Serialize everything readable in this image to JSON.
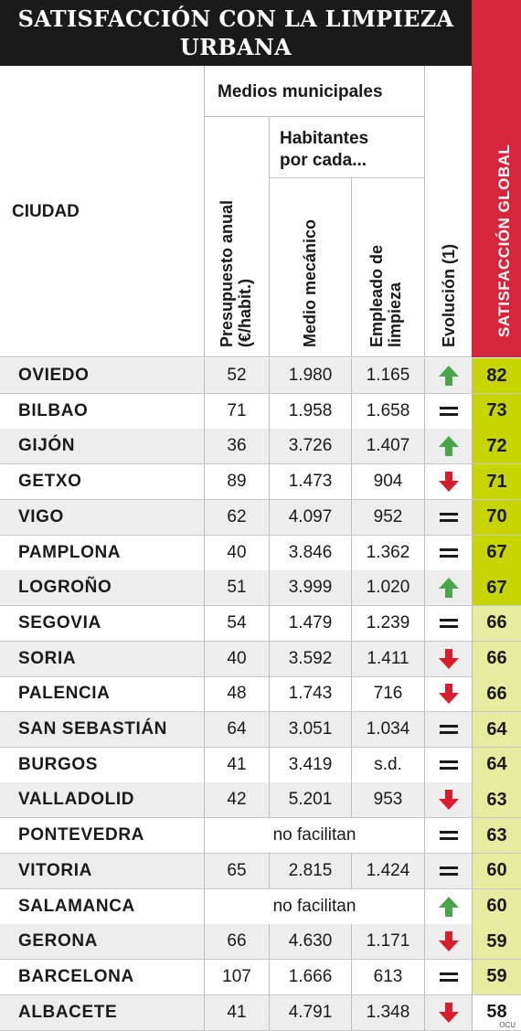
{
  "title": {
    "line1": "SATISFACCIÓN CON LA LIMPIEZA",
    "line2": "URBANA"
  },
  "headers": {
    "ciudad": "CIUDAD",
    "medios": "Medios municipales",
    "habitantes_line1": "Habitantes",
    "habitantes_line2": "por cada...",
    "presupuesto_line1": "Presupuesto anual",
    "presupuesto_line2": "(€/habit.)",
    "medio_mecanico": "Medio mecánico",
    "empleado_line1": "Empleado de",
    "empleado_line2": "limpieza",
    "evolucion": "Evolución (1)",
    "satisfaccion": "SATISFACCIÓN GLOBAL"
  },
  "colors": {
    "header_bg": "#1a1a1a",
    "satisfaccion_header": "#d6263d",
    "arrow_up": "#4aa54a",
    "arrow_down": "#d81e2c",
    "equal": "#1a1a1a",
    "score_high": "#c8d400",
    "score_mid": "#e7eb9e",
    "score_low": "#ffffff"
  },
  "rows": [
    {
      "ciudad": "OVIEDO",
      "presupuesto": "52",
      "mecanico": "1.980",
      "empleado": "1.165",
      "evolucion": "up",
      "satisfaccion": "82",
      "tier": "high"
    },
    {
      "ciudad": "BILBAO",
      "presupuesto": "71",
      "mecanico": "1.958",
      "empleado": "1.658",
      "evolucion": "equal",
      "satisfaccion": "73",
      "tier": "high"
    },
    {
      "ciudad": "GIJÓN",
      "presupuesto": "36",
      "mecanico": "3.726",
      "empleado": "1.407",
      "evolucion": "up",
      "satisfaccion": "72",
      "tier": "high"
    },
    {
      "ciudad": "GETXO",
      "presupuesto": "89",
      "mecanico": "1.473",
      "empleado": "904",
      "evolucion": "down",
      "satisfaccion": "71",
      "tier": "high"
    },
    {
      "ciudad": "VIGO",
      "presupuesto": "62",
      "mecanico": "4.097",
      "empleado": "952",
      "evolucion": "equal",
      "satisfaccion": "70",
      "tier": "high"
    },
    {
      "ciudad": "PAMPLONA",
      "presupuesto": "40",
      "mecanico": "3.846",
      "empleado": "1.362",
      "evolucion": "equal",
      "satisfaccion": "67",
      "tier": "high"
    },
    {
      "ciudad": "LOGROÑO",
      "presupuesto": "51",
      "mecanico": "3.999",
      "empleado": "1.020",
      "evolucion": "up",
      "satisfaccion": "67",
      "tier": "high"
    },
    {
      "ciudad": "SEGOVIA",
      "presupuesto": "54",
      "mecanico": "1.479",
      "empleado": "1.239",
      "evolucion": "equal",
      "satisfaccion": "66",
      "tier": "mid"
    },
    {
      "ciudad": "SORIA",
      "presupuesto": "40",
      "mecanico": "3.592",
      "empleado": "1.411",
      "evolucion": "down",
      "satisfaccion": "66",
      "tier": "mid"
    },
    {
      "ciudad": "PALENCIA",
      "presupuesto": "48",
      "mecanico": "1.743",
      "empleado": "716",
      "evolucion": "down",
      "satisfaccion": "66",
      "tier": "mid"
    },
    {
      "ciudad": "SAN SEBASTIÁN",
      "presupuesto": "64",
      "mecanico": "3.051",
      "empleado": "1.034",
      "evolucion": "equal",
      "satisfaccion": "64",
      "tier": "mid"
    },
    {
      "ciudad": "BURGOS",
      "presupuesto": "41",
      "mecanico": "3.419",
      "empleado": "s.d.",
      "evolucion": "equal",
      "satisfaccion": "64",
      "tier": "mid"
    },
    {
      "ciudad": "VALLADOLID",
      "presupuesto": "42",
      "mecanico": "5.201",
      "empleado": "953",
      "evolucion": "down",
      "satisfaccion": "63",
      "tier": "mid"
    },
    {
      "ciudad": "PONTEVEDRA",
      "no_facilitan": "no facilitan",
      "evolucion": "equal",
      "satisfaccion": "63",
      "tier": "mid"
    },
    {
      "ciudad": "VITORIA",
      "presupuesto": "65",
      "mecanico": "2.815",
      "empleado": "1.424",
      "evolucion": "equal",
      "satisfaccion": "60",
      "tier": "mid"
    },
    {
      "ciudad": "SALAMANCA",
      "no_facilitan": "no facilitan",
      "evolucion": "up",
      "satisfaccion": "60",
      "tier": "mid"
    },
    {
      "ciudad": "GERONA",
      "presupuesto": "66",
      "mecanico": "4.630",
      "empleado": "1.171",
      "evolucion": "down",
      "satisfaccion": "59",
      "tier": "mid"
    },
    {
      "ciudad": "BARCELONA",
      "presupuesto": "107",
      "mecanico": "1.666",
      "empleado": "613",
      "evolucion": "equal",
      "satisfaccion": "59",
      "tier": "mid"
    },
    {
      "ciudad": "ALBACETE",
      "presupuesto": "41",
      "mecanico": "4.791",
      "empleado": "1.348",
      "evolucion": "down",
      "satisfaccion": "58",
      "tier": "low"
    }
  ],
  "footer": "OCU"
}
